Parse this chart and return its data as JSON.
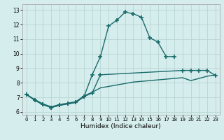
{
  "xlabel": "Humidex (Indice chaleur)",
  "xlim": [
    -0.5,
    23.5
  ],
  "ylim": [
    5.8,
    13.4
  ],
  "xticks": [
    0,
    1,
    2,
    3,
    4,
    5,
    6,
    7,
    8,
    9,
    10,
    11,
    12,
    13,
    14,
    15,
    16,
    17,
    18,
    19,
    20,
    21,
    22,
    23
  ],
  "yticks": [
    6,
    7,
    8,
    9,
    10,
    11,
    12,
    13
  ],
  "background_color": "#d5edec",
  "grid_color": "#b8d4d3",
  "line_color": "#1a6b6b",
  "line_width": 1.0,
  "marker": "+",
  "marker_size": 4,
  "marker_ew": 1.2,
  "line1_x": [
    0,
    1,
    2,
    3,
    4,
    5,
    6,
    7,
    8,
    9,
    10,
    11,
    12,
    13,
    14,
    15,
    16,
    17,
    18
  ],
  "line1_y": [
    7.2,
    6.8,
    6.5,
    6.3,
    6.45,
    6.55,
    6.65,
    7.05,
    8.55,
    9.8,
    11.9,
    12.3,
    12.85,
    12.75,
    12.5,
    11.1,
    10.8,
    9.8,
    9.8
  ],
  "line2_x": [
    0,
    1,
    2,
    3,
    4,
    5,
    6,
    7,
    8,
    9,
    19,
    20,
    21,
    22,
    23
  ],
  "line2_y": [
    7.2,
    6.8,
    6.5,
    6.3,
    6.45,
    6.55,
    6.65,
    7.05,
    7.3,
    8.55,
    8.85,
    8.85,
    8.85,
    8.85,
    8.5
  ],
  "line3_x": [
    0,
    1,
    2,
    3,
    4,
    5,
    6,
    7,
    8,
    9,
    10,
    11,
    12,
    13,
    14,
    15,
    16,
    17,
    18,
    19,
    20,
    21,
    22,
    23
  ],
  "line3_y": [
    7.2,
    6.85,
    6.55,
    6.35,
    6.5,
    6.6,
    6.7,
    7.1,
    7.35,
    7.65,
    7.75,
    7.85,
    7.95,
    8.05,
    8.1,
    8.15,
    8.2,
    8.25,
    8.3,
    8.35,
    8.15,
    8.3,
    8.45,
    8.55
  ]
}
